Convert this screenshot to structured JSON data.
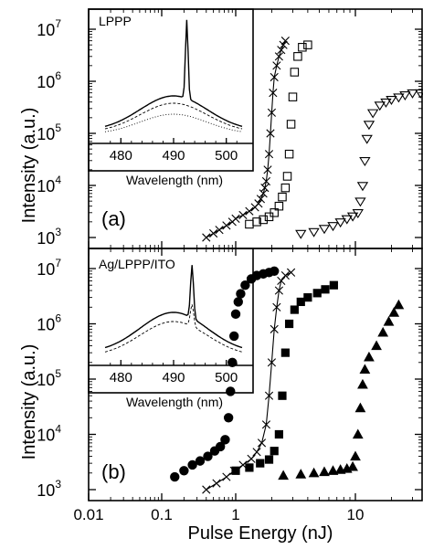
{
  "chart_data": [
    {
      "panel": "(a)",
      "type": "scatter",
      "x_scale": "log",
      "y_scale": "log",
      "xlim": [
        0.01,
        40
      ],
      "ylim": [
        700,
        20000000
      ],
      "x_ticks": [
        "0.01",
        "0.1",
        "1",
        "10"
      ],
      "y_ticks": [
        "10^3",
        "10^4",
        "10^5",
        "10^6",
        "10^7"
      ],
      "ylabel": "Intensity (a.u.)",
      "annotation": "(a)",
      "series": [
        {
          "marker": "x",
          "line": true,
          "x": [
            0.4,
            0.5,
            0.6,
            0.75,
            0.9,
            1.0,
            1.15,
            1.3,
            1.45,
            1.55,
            1.62,
            1.7,
            1.75,
            1.8,
            1.85,
            1.9,
            1.95,
            2.0,
            2.05,
            2.1,
            2.2,
            2.3,
            2.4,
            2.5,
            2.6
          ],
          "y": [
            1000,
            1200,
            1400,
            1700,
            2000,
            2300,
            2700,
            3200,
            3800,
            4500,
            5500,
            7000,
            9000,
            12000,
            20000,
            40000,
            100000,
            250000,
            600000,
            1200000,
            2000000,
            3000000,
            4000000,
            5000000,
            6000000
          ]
        },
        {
          "marker": "open-square",
          "line": false,
          "x": [
            1.3,
            1.5,
            1.7,
            1.9,
            2.1,
            2.3,
            2.45,
            2.6,
            2.7,
            2.8,
            2.9,
            3.0,
            3.1,
            3.3,
            3.6,
            4.0
          ],
          "y": [
            1800,
            2000,
            2200,
            2500,
            3000,
            4000,
            6000,
            9000,
            15000,
            40000,
            150000,
            500000,
            1500000,
            3000000,
            4500000,
            5000000
          ]
        },
        {
          "marker": "open-triangle-down",
          "line": false,
          "x": [
            3.5,
            4.5,
            5.5,
            6.5,
            7.5,
            8.5,
            9.5,
            10.5,
            11,
            11.5,
            12,
            12.5,
            13,
            14,
            16,
            18,
            20,
            23,
            26,
            30,
            35
          ],
          "y": [
            1200,
            1300,
            1500,
            1700,
            2000,
            2300,
            2600,
            3000,
            5000,
            10000,
            30000,
            80000,
            150000,
            250000,
            350000,
            400000,
            450000,
            500000,
            550000,
            600000,
            600000
          ]
        }
      ]
    },
    {
      "panel": "(b)",
      "type": "scatter",
      "x_scale": "log",
      "y_scale": "log",
      "xlim": [
        0.01,
        40
      ],
      "ylim": [
        700,
        20000000
      ],
      "x_ticks": [
        "0.01",
        "0.1",
        "1",
        "10"
      ],
      "y_ticks": [
        "10^3",
        "10^4",
        "10^5",
        "10^6",
        "10^7"
      ],
      "xlabel": "Pulse Energy (nJ)",
      "ylabel": "Intensity (a.u.)",
      "annotation": "(b)",
      "series": [
        {
          "marker": "filled-circle",
          "line": false,
          "x": [
            0.15,
            0.2,
            0.26,
            0.33,
            0.42,
            0.52,
            0.62,
            0.72,
            0.8,
            0.85,
            0.9,
            0.95,
            1.0,
            1.05,
            1.1,
            1.2,
            1.35,
            1.5,
            1.7,
            1.9,
            2.1
          ],
          "y": [
            1700,
            2200,
            2800,
            3300,
            4000,
            5000,
            6000,
            8000,
            20000,
            60000,
            200000,
            600000,
            1500000,
            2500000,
            3500000,
            5000000,
            6500000,
            7500000,
            8000000,
            8500000,
            9000000
          ]
        },
        {
          "marker": "x",
          "line": true,
          "x": [
            0.4,
            0.55,
            0.75,
            0.95,
            1.15,
            1.35,
            1.5,
            1.65,
            1.8,
            1.9,
            2.0,
            2.1,
            2.2,
            2.3,
            2.4,
            2.6,
            2.9
          ],
          "y": [
            1000,
            1300,
            1700,
            2200,
            2800,
            3600,
            4800,
            7000,
            15000,
            50000,
            200000,
            800000,
            2000000,
            4000000,
            6000000,
            7500000,
            8500000
          ]
        },
        {
          "marker": "filled-square",
          "line": false,
          "x": [
            1.0,
            1.3,
            1.6,
            1.9,
            2.1,
            2.3,
            2.45,
            2.6,
            2.8,
            3.1,
            3.5,
            4.0,
            4.8,
            5.6,
            6.6
          ],
          "y": [
            2200,
            2500,
            3000,
            3500,
            5000,
            10000,
            50000,
            300000,
            1000000,
            1800000,
            2500000,
            3000000,
            3600000,
            4200000,
            5000000
          ]
        },
        {
          "marker": "filled-triangle-up",
          "line": false,
          "x": [
            2.5,
            3.5,
            4.5,
            5.5,
            6.5,
            7.5,
            8.5,
            9.5,
            10,
            10.5,
            11,
            11.5,
            12,
            13,
            15,
            17,
            19,
            21,
            23
          ],
          "y": [
            1800,
            1900,
            2000,
            2100,
            2200,
            2300,
            2400,
            2600,
            4000,
            10000,
            30000,
            80000,
            150000,
            250000,
            400000,
            700000,
            1100000,
            1600000,
            2200000
          ]
        }
      ]
    }
  ],
  "insets": [
    {
      "label": "LPPP",
      "xlabel": "Wavelength (nm)",
      "x_ticks": [
        "480",
        "490",
        "500"
      ],
      "xlim": [
        477,
        503
      ],
      "peak_nm": 492.5
    },
    {
      "label": "Ag/LPPP/ITO",
      "xlabel": "Wavelength (nm)",
      "x_ticks": [
        "480",
        "490",
        "500"
      ],
      "xlim": [
        477,
        503
      ],
      "peak_nm": 493.5
    }
  ]
}
